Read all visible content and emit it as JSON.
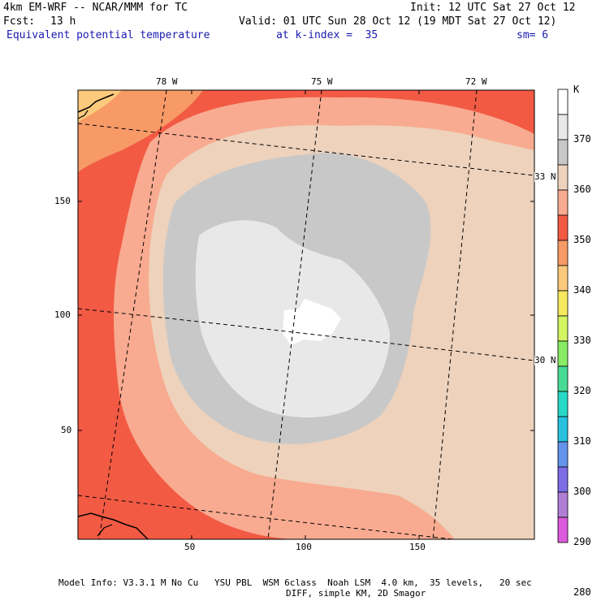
{
  "header": {
    "model": "4km EM-WRF -- NCAR/MMM for TC",
    "init": "Init: 12 UTC Sat 27 Oct 12",
    "fcst_label": "Fcst:",
    "fcst_value": "13 h",
    "valid": "Valid: 01 UTC Sun 28 Oct 12 (19 MDT Sat 27 Oct 12)",
    "field": "Equivalent potential temperature",
    "level": "at k-index =  35",
    "smoothing": "sm= 6"
  },
  "map": {
    "x_ticks": [
      "50",
      "100",
      "150"
    ],
    "y_ticks": [
      "50",
      "100",
      "150"
    ],
    "lon_labels": [
      "78 W",
      "75 W",
      "72 W"
    ],
    "lat_labels": [
      "33 N",
      "30 N"
    ]
  },
  "colorbar": {
    "unit": "K",
    "levels": [
      "370",
      "360",
      "350",
      "340",
      "330",
      "320",
      "310",
      "300",
      "290",
      "280"
    ],
    "colors": {
      "above_370": "#ffffff",
      "360_370": "#e8e8e8",
      "350_360": "#c8c8c8",
      "345_350": "#eed2bc",
      "340_345": "#f8ab90",
      "335_340": "#f25a44",
      "330_335": "#f79a66",
      "325_330": "#fcca7c",
      "320_325": "#f6e95e",
      "315_320": "#d2f560",
      "310_315": "#88eb64",
      "305_310": "#48db94",
      "300_305": "#28d8c6",
      "295_300": "#28c2de",
      "290_295": "#6493ec",
      "285_290": "#7c6ce6",
      "280_285": "#b07ed4",
      "below_280": "#dc5adc"
    }
  },
  "footer": {
    "line1": "Model Info: V3.3.1 M No Cu   YSU PBL  WSM 6class  Noah LSM  4.0 km,  35 levels,   20 sec",
    "line2": "DIFF, simple KM, 2D Smagor"
  }
}
